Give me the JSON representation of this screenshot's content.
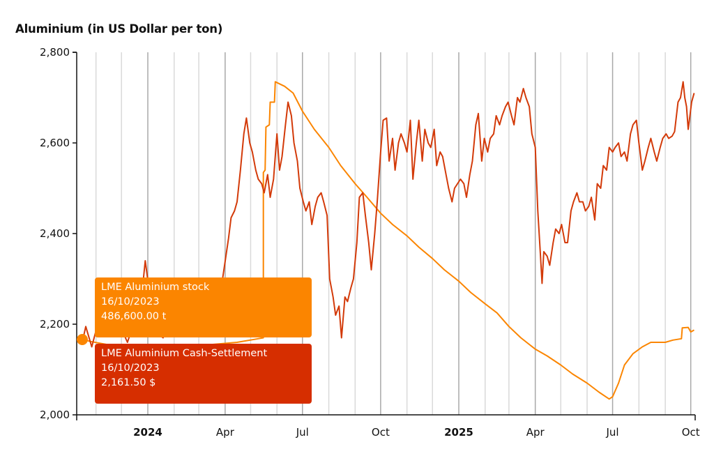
{
  "title": "Aluminium (in US Dollar per ton)",
  "colors": {
    "price_line": "#d33a09",
    "stock_line": "#fb8500",
    "tooltip_stock_bg": "#fb8500",
    "tooltip_price_bg": "#d62e00",
    "grid_month": "#d9d9d9",
    "grid_quarter": "#a8a8a8",
    "axis": "#111111"
  },
  "tooltips": {
    "stock": {
      "series": "LME Aluminium stock",
      "date": "16/10/2023",
      "value": "486,600.00 t"
    },
    "price": {
      "series": "LME Aluminium Cash-Settlement",
      "date": "16/10/2023",
      "value": "2,161.50 $"
    }
  },
  "chart_data": {
    "type": "line",
    "title": "Aluminium (in US Dollar per ton)",
    "xlabel": "",
    "ylabel": "US Dollar per ton",
    "ylim": [
      2000,
      2800
    ],
    "y_ticks": [
      "2,000",
      "2,200",
      "2,400",
      "2,600",
      "2,800"
    ],
    "x_ticks": [
      {
        "label": "2024",
        "bold": true
      },
      {
        "label": "Apr",
        "bold": false
      },
      {
        "label": "Jul",
        "bold": false
      },
      {
        "label": "Oct",
        "bold": false
      },
      {
        "label": "2025",
        "bold": true
      },
      {
        "label": "Apr",
        "bold": false
      },
      {
        "label": "Jul",
        "bold": false
      },
      {
        "label": "Oct",
        "bold": false
      }
    ],
    "grid": "vertical monthly lines, darker at quarters",
    "legend": "none (hover tooltips)",
    "x_range": [
      "2023-10-16",
      "2025-10-05"
    ],
    "series": [
      {
        "name": "LME Aluminium Cash-Settlement",
        "unit": "$",
        "axis": "left",
        "points": [
          [
            "2023-10-16",
            2161.5
          ],
          [
            "2023-10-20",
            2195
          ],
          [
            "2023-10-27",
            2150
          ],
          [
            "2023-11-03",
            2200
          ],
          [
            "2023-11-10",
            2245
          ],
          [
            "2023-11-17",
            2200
          ],
          [
            "2023-11-24",
            2180
          ],
          [
            "2023-12-01",
            2190
          ],
          [
            "2023-12-08",
            2160
          ],
          [
            "2023-12-15",
            2200
          ],
          [
            "2023-12-22",
            2210
          ],
          [
            "2023-12-29",
            2340
          ],
          [
            "2024-01-05",
            2240
          ],
          [
            "2024-01-12",
            2180
          ],
          [
            "2024-01-19",
            2170
          ],
          [
            "2024-01-26",
            2200
          ],
          [
            "2024-02-02",
            2230
          ],
          [
            "2024-02-09",
            2190
          ],
          [
            "2024-02-16",
            2180
          ],
          [
            "2024-02-23",
            2180
          ],
          [
            "2024-03-01",
            2200
          ],
          [
            "2024-03-08",
            2230
          ],
          [
            "2024-03-15",
            2230
          ],
          [
            "2024-03-22",
            2260
          ],
          [
            "2024-03-29",
            2300
          ],
          [
            "2024-04-05",
            2390
          ],
          [
            "2024-04-08",
            2435
          ],
          [
            "2024-04-12",
            2450
          ],
          [
            "2024-04-15",
            2470
          ],
          [
            "2024-04-19",
            2540
          ],
          [
            "2024-04-23",
            2620
          ],
          [
            "2024-04-26",
            2655
          ],
          [
            "2024-04-30",
            2600
          ],
          [
            "2024-05-03",
            2580
          ],
          [
            "2024-05-07",
            2540
          ],
          [
            "2024-05-10",
            2520
          ],
          [
            "2024-05-14",
            2510
          ],
          [
            "2024-05-17",
            2490
          ],
          [
            "2024-05-21",
            2530
          ],
          [
            "2024-05-24",
            2480
          ],
          [
            "2024-05-28",
            2520
          ],
          [
            "2024-06-01",
            2620
          ],
          [
            "2024-06-04",
            2540
          ],
          [
            "2024-06-07",
            2570
          ],
          [
            "2024-06-11",
            2640
          ],
          [
            "2024-06-14",
            2690
          ],
          [
            "2024-06-18",
            2660
          ],
          [
            "2024-06-21",
            2600
          ],
          [
            "2024-06-25",
            2560
          ],
          [
            "2024-06-28",
            2500
          ],
          [
            "2024-07-02",
            2470
          ],
          [
            "2024-07-05",
            2450
          ],
          [
            "2024-07-09",
            2470
          ],
          [
            "2024-07-12",
            2420
          ],
          [
            "2024-07-16",
            2460
          ],
          [
            "2024-07-19",
            2480
          ],
          [
            "2024-07-23",
            2490
          ],
          [
            "2024-07-26",
            2470
          ],
          [
            "2024-07-30",
            2440
          ],
          [
            "2024-08-02",
            2300
          ],
          [
            "2024-08-06",
            2260
          ],
          [
            "2024-08-09",
            2220
          ],
          [
            "2024-08-13",
            2240
          ],
          [
            "2024-08-16",
            2170
          ],
          [
            "2024-08-20",
            2260
          ],
          [
            "2024-08-23",
            2250
          ],
          [
            "2024-08-27",
            2280
          ],
          [
            "2024-08-30",
            2300
          ],
          [
            "2024-09-03",
            2380
          ],
          [
            "2024-09-06",
            2480
          ],
          [
            "2024-09-10",
            2490
          ],
          [
            "2024-09-13",
            2440
          ],
          [
            "2024-09-17",
            2380
          ],
          [
            "2024-09-20",
            2320
          ],
          [
            "2024-09-24",
            2400
          ],
          [
            "2024-09-27",
            2470
          ],
          [
            "2024-10-01",
            2580
          ],
          [
            "2024-10-04",
            2650
          ],
          [
            "2024-10-08",
            2655
          ],
          [
            "2024-10-11",
            2560
          ],
          [
            "2024-10-15",
            2610
          ],
          [
            "2024-10-18",
            2540
          ],
          [
            "2024-10-22",
            2600
          ],
          [
            "2024-10-25",
            2620
          ],
          [
            "2024-10-29",
            2600
          ],
          [
            "2024-11-01",
            2580
          ],
          [
            "2024-11-05",
            2650
          ],
          [
            "2024-11-08",
            2520
          ],
          [
            "2024-11-12",
            2600
          ],
          [
            "2024-11-15",
            2650
          ],
          [
            "2024-11-19",
            2560
          ],
          [
            "2024-11-22",
            2630
          ],
          [
            "2024-11-26",
            2600
          ],
          [
            "2024-11-29",
            2590
          ],
          [
            "2024-12-03",
            2630
          ],
          [
            "2024-12-06",
            2550
          ],
          [
            "2024-12-10",
            2580
          ],
          [
            "2024-12-13",
            2570
          ],
          [
            "2024-12-17",
            2530
          ],
          [
            "2024-12-20",
            2500
          ],
          [
            "2024-12-24",
            2470
          ],
          [
            "2024-12-27",
            2500
          ],
          [
            "2025-01-03",
            2520
          ],
          [
            "2025-01-07",
            2510
          ],
          [
            "2025-01-10",
            2480
          ],
          [
            "2025-01-14",
            2530
          ],
          [
            "2025-01-17",
            2560
          ],
          [
            "2025-01-21",
            2640
          ],
          [
            "2025-01-24",
            2665
          ],
          [
            "2025-01-28",
            2560
          ],
          [
            "2025-01-31",
            2610
          ],
          [
            "2025-02-04",
            2580
          ],
          [
            "2025-02-07",
            2610
          ],
          [
            "2025-02-11",
            2620
          ],
          [
            "2025-02-14",
            2660
          ],
          [
            "2025-02-18",
            2640
          ],
          [
            "2025-02-21",
            2660
          ],
          [
            "2025-02-25",
            2680
          ],
          [
            "2025-02-28",
            2690
          ],
          [
            "2025-03-04",
            2660
          ],
          [
            "2025-03-07",
            2640
          ],
          [
            "2025-03-11",
            2700
          ],
          [
            "2025-03-14",
            2690
          ],
          [
            "2025-03-18",
            2720
          ],
          [
            "2025-03-21",
            2700
          ],
          [
            "2025-03-25",
            2680
          ],
          [
            "2025-03-28",
            2620
          ],
          [
            "2025-04-01",
            2590
          ],
          [
            "2025-04-04",
            2450
          ],
          [
            "2025-04-07",
            2355
          ],
          [
            "2025-04-09",
            2290
          ],
          [
            "2025-04-11",
            2360
          ],
          [
            "2025-04-15",
            2350
          ],
          [
            "2025-04-18",
            2330
          ],
          [
            "2025-04-22",
            2380
          ],
          [
            "2025-04-25",
            2410
          ],
          [
            "2025-04-29",
            2400
          ],
          [
            "2025-05-02",
            2420
          ],
          [
            "2025-05-06",
            2380
          ],
          [
            "2025-05-09",
            2380
          ],
          [
            "2025-05-13",
            2450
          ],
          [
            "2025-05-16",
            2470
          ],
          [
            "2025-05-20",
            2490
          ],
          [
            "2025-05-23",
            2470
          ],
          [
            "2025-05-27",
            2470
          ],
          [
            "2025-05-30",
            2450
          ],
          [
            "2025-06-03",
            2460
          ],
          [
            "2025-06-06",
            2480
          ],
          [
            "2025-06-10",
            2430
          ],
          [
            "2025-06-13",
            2510
          ],
          [
            "2025-06-17",
            2500
          ],
          [
            "2025-06-20",
            2550
          ],
          [
            "2025-06-24",
            2540
          ],
          [
            "2025-06-27",
            2590
          ],
          [
            "2025-07-01",
            2580
          ],
          [
            "2025-07-04",
            2590
          ],
          [
            "2025-07-08",
            2600
          ],
          [
            "2025-07-11",
            2570
          ],
          [
            "2025-07-15",
            2580
          ],
          [
            "2025-07-18",
            2560
          ],
          [
            "2025-07-22",
            2620
          ],
          [
            "2025-07-25",
            2640
          ],
          [
            "2025-07-29",
            2650
          ],
          [
            "2025-08-01",
            2600
          ],
          [
            "2025-08-05",
            2540
          ],
          [
            "2025-08-08",
            2560
          ],
          [
            "2025-08-12",
            2590
          ],
          [
            "2025-08-15",
            2610
          ],
          [
            "2025-08-19",
            2580
          ],
          [
            "2025-08-22",
            2560
          ],
          [
            "2025-08-26",
            2590
          ],
          [
            "2025-08-29",
            2610
          ],
          [
            "2025-09-02",
            2620
          ],
          [
            "2025-09-05",
            2610
          ],
          [
            "2025-09-09",
            2615
          ],
          [
            "2025-09-12",
            2625
          ],
          [
            "2025-09-16",
            2690
          ],
          [
            "2025-09-19",
            2700
          ],
          [
            "2025-09-22",
            2735
          ],
          [
            "2025-09-24",
            2700
          ],
          [
            "2025-09-26",
            2680
          ],
          [
            "2025-09-28",
            2630
          ],
          [
            "2025-09-30",
            2660
          ],
          [
            "2025-10-02",
            2690
          ],
          [
            "2025-10-05",
            2710
          ]
        ]
      },
      {
        "name": "LME Aluminium stock",
        "unit": "t",
        "axis": "secondary (rendered on same scale)",
        "note": "values expressed in left-axis equivalent units for plotting; first point = 486,600.00 t",
        "points": [
          [
            "2023-10-16",
            2167
          ],
          [
            "2023-10-25",
            2162
          ],
          [
            "2023-11-15",
            2155
          ],
          [
            "2023-12-15",
            2150
          ],
          [
            "2024-01-15",
            2148
          ],
          [
            "2024-02-15",
            2150
          ],
          [
            "2024-03-15",
            2155
          ],
          [
            "2024-04-15",
            2160
          ],
          [
            "2024-05-10",
            2168
          ],
          [
            "2024-05-16",
            2170
          ],
          [
            "2024-05-16",
            2535
          ],
          [
            "2024-05-18",
            2540
          ],
          [
            "2024-05-19",
            2635
          ],
          [
            "2024-05-23",
            2640
          ],
          [
            "2024-05-24",
            2690
          ],
          [
            "2024-05-29",
            2690
          ],
          [
            "2024-05-30",
            2735
          ],
          [
            "2024-06-10",
            2725
          ],
          [
            "2024-06-20",
            2710
          ],
          [
            "2024-07-01",
            2670
          ],
          [
            "2024-07-15",
            2630
          ],
          [
            "2024-08-01",
            2590
          ],
          [
            "2024-08-15",
            2550
          ],
          [
            "2024-09-01",
            2510
          ],
          [
            "2024-09-15",
            2480
          ],
          [
            "2024-10-01",
            2445
          ],
          [
            "2024-10-15",
            2420
          ],
          [
            "2024-11-01",
            2395
          ],
          [
            "2024-11-15",
            2370
          ],
          [
            "2024-12-01",
            2345
          ],
          [
            "2024-12-15",
            2320
          ],
          [
            "2025-01-01",
            2295
          ],
          [
            "2025-01-15",
            2270
          ],
          [
            "2025-02-01",
            2245
          ],
          [
            "2025-02-15",
            2225
          ],
          [
            "2025-03-01",
            2195
          ],
          [
            "2025-03-15",
            2170
          ],
          [
            "2025-04-01",
            2145
          ],
          [
            "2025-04-15",
            2130
          ],
          [
            "2025-05-01",
            2110
          ],
          [
            "2025-05-15",
            2090
          ],
          [
            "2025-06-01",
            2070
          ],
          [
            "2025-06-15",
            2050
          ],
          [
            "2025-06-27",
            2035
          ],
          [
            "2025-07-01",
            2040
          ],
          [
            "2025-07-08",
            2070
          ],
          [
            "2025-07-15",
            2110
          ],
          [
            "2025-07-25",
            2135
          ],
          [
            "2025-08-05",
            2150
          ],
          [
            "2025-08-15",
            2160
          ],
          [
            "2025-09-01",
            2160
          ],
          [
            "2025-09-10",
            2165
          ],
          [
            "2025-09-20",
            2168
          ],
          [
            "2025-09-21",
            2192
          ],
          [
            "2025-09-28",
            2193
          ],
          [
            "2025-10-01",
            2183
          ],
          [
            "2025-10-05",
            2187
          ]
        ]
      }
    ]
  }
}
